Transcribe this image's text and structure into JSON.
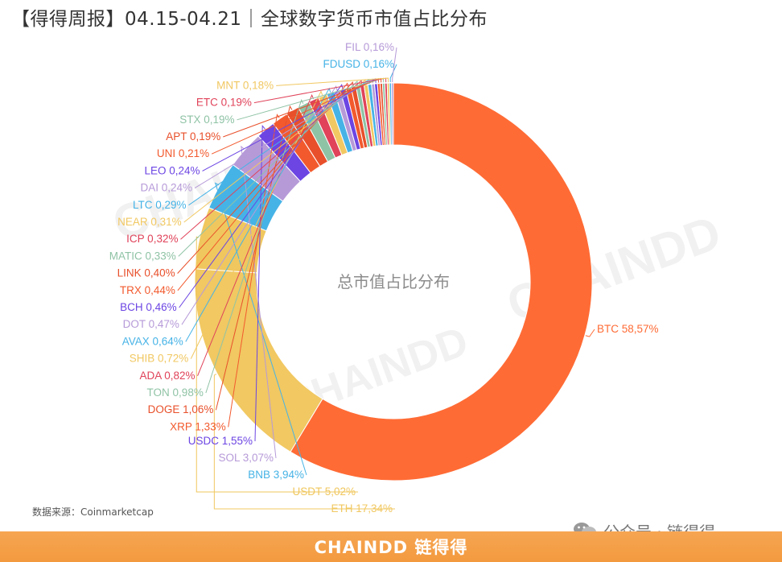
{
  "header": {
    "title": "【得得周报】04.15-04.21｜全球数字货币市值占比分布"
  },
  "source": "数据来源：Coinmarketcap",
  "brand_watermark": "CHAINDD",
  "brand_watermark_cn": "链得得",
  "wechat": {
    "text": "公众号 · 链得得",
    "icon": "wechat-icon"
  },
  "footer": {
    "brand": "CHAINDD 链得得",
    "color": "#f39a3f"
  },
  "chart_data": {
    "type": "pie",
    "donut": true,
    "center_label": "总市值占比分布",
    "slices": [
      {
        "name": "BTC",
        "value": 58.57,
        "label": "BTC 58,57%",
        "color": "#ff6b35"
      },
      {
        "name": "ETH",
        "value": 17.34,
        "label": "ETH 17,34%",
        "color": "#f1c862"
      },
      {
        "name": "USDT",
        "value": 5.02,
        "label": "USDT 5,02%",
        "color": "#f0c75e"
      },
      {
        "name": "BNB",
        "value": 3.94,
        "label": "BNB 3,94%",
        "color": "#46b3e6"
      },
      {
        "name": "SOL",
        "value": 3.07,
        "label": "SOL 3,07%",
        "color": "#b69ad8"
      },
      {
        "name": "USDC",
        "value": 1.55,
        "label": "USDC 1,55%",
        "color": "#6c45e3"
      },
      {
        "name": "XRP",
        "value": 1.33,
        "label": "XRP 1,33%",
        "color": "#f25a2e"
      },
      {
        "name": "DOGE",
        "value": 1.06,
        "label": "DOGE 1,06%",
        "color": "#e8502b"
      },
      {
        "name": "TON",
        "value": 0.98,
        "label": "TON 0,98%",
        "color": "#8fc3a5"
      },
      {
        "name": "ADA",
        "value": 0.82,
        "label": "ADA 0,82%",
        "color": "#e0435a"
      },
      {
        "name": "SHIB",
        "value": 0.72,
        "label": "SHIB 0,72%",
        "color": "#f1c862"
      },
      {
        "name": "AVAX",
        "value": 0.64,
        "label": "AVAX 0,64%",
        "color": "#46b3e6"
      },
      {
        "name": "DOT",
        "value": 0.47,
        "label": "DOT 0,47%",
        "color": "#b69ad8"
      },
      {
        "name": "BCH",
        "value": 0.46,
        "label": "BCH 0,46%",
        "color": "#6c45e3"
      },
      {
        "name": "TRX",
        "value": 0.44,
        "label": "TRX 0,44%",
        "color": "#f25a2e"
      },
      {
        "name": "LINK",
        "value": 0.4,
        "label": "LINK 0,40%",
        "color": "#e8502b"
      },
      {
        "name": "MATIC",
        "value": 0.33,
        "label": "MATIC 0,33%",
        "color": "#8fc3a5"
      },
      {
        "name": "ICP",
        "value": 0.32,
        "label": "ICP 0,32%",
        "color": "#e0435a"
      },
      {
        "name": "NEAR",
        "value": 0.31,
        "label": "NEAR 0,31%",
        "color": "#f1c862"
      },
      {
        "name": "LTC",
        "value": 0.29,
        "label": "LTC 0,29%",
        "color": "#46b3e6"
      },
      {
        "name": "DAI",
        "value": 0.24,
        "label": "DAI 0,24%",
        "color": "#b69ad8"
      },
      {
        "name": "LEO",
        "value": 0.24,
        "label": "LEO 0,24%",
        "color": "#6c45e3"
      },
      {
        "name": "UNI",
        "value": 0.21,
        "label": "UNI 0,21%",
        "color": "#f25a2e"
      },
      {
        "name": "APT",
        "value": 0.19,
        "label": "APT 0,19%",
        "color": "#e8502b"
      },
      {
        "name": "STX",
        "value": 0.19,
        "label": "STX 0,19%",
        "color": "#8fc3a5"
      },
      {
        "name": "ETC",
        "value": 0.19,
        "label": "ETC 0,19%",
        "color": "#e0435a"
      },
      {
        "name": "MNT",
        "value": 0.18,
        "label": "MNT 0,18%",
        "color": "#f1c862"
      },
      {
        "name": "FDUSD",
        "value": 0.16,
        "label": "FDUSD 0,16%",
        "color": "#46b3e6"
      },
      {
        "name": "FIL",
        "value": 0.16,
        "label": "FIL 0,16%",
        "color": "#b69ad8"
      }
    ],
    "legend": "none"
  }
}
